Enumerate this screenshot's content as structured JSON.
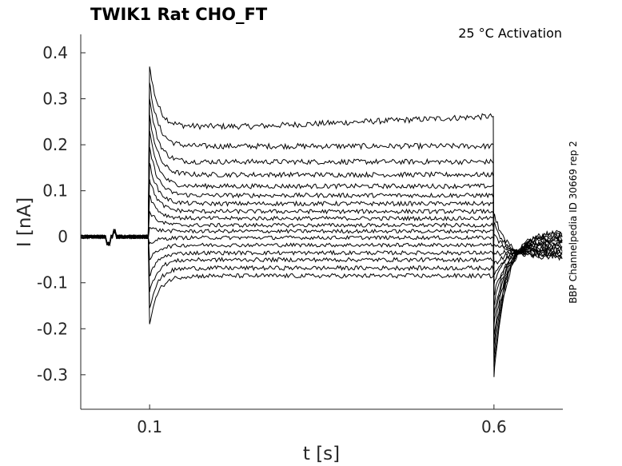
{
  "chart_data": {
    "type": "line",
    "title": "TWIK1  Rat  CHO_FT",
    "annotation": "25 °C  Activation",
    "side_label": "BBP Channelpedia ID 30669 rep 2",
    "xlabel": "t [s]",
    "ylabel": "I [nA]",
    "xlim": [
      0.0,
      0.7
    ],
    "ylim": [
      -0.375,
      0.44
    ],
    "xticks": [
      0.1,
      0.6
    ],
    "xtick_labels": [
      "0.1",
      "0.6"
    ],
    "yticks": [
      0.4,
      0.3,
      0.2,
      0.1,
      0,
      -0.1,
      -0.2,
      -0.3
    ],
    "ytick_labels": [
      "0.4",
      "0.3",
      "0.2",
      "0.1",
      "0",
      "-0.1",
      "-0.2",
      "-0.3"
    ],
    "grid": false,
    "step_start": 0.1,
    "step_end": 0.6,
    "series_steady_state_nA": [
      0.24,
      0.197,
      0.163,
      0.135,
      0.11,
      0.09,
      0.072,
      0.055,
      0.04,
      0.025,
      0.012,
      -0.002,
      -0.018,
      -0.035,
      -0.05,
      -0.068,
      -0.085
    ],
    "onset_peak_max_nA": 0.37,
    "onset_peak_min_nA": -0.19,
    "offset_peak_min_nA": -0.305,
    "offset_peak_max_nA": 0.05
  }
}
